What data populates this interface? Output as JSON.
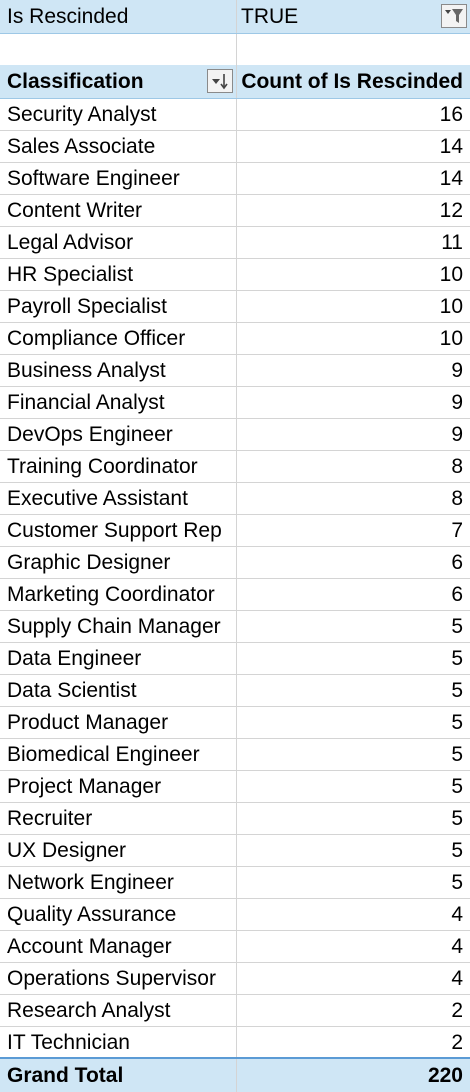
{
  "filter": {
    "field": "Is Rescinded",
    "value": "TRUE",
    "button_icon": "filter-dropdown-icon"
  },
  "header": {
    "col1": "Classification",
    "col2": "Count of Is Rescinded",
    "sort_icon": "sort-descending-dropdown-icon"
  },
  "rows": [
    {
      "label": "Security Analyst",
      "count": "16"
    },
    {
      "label": "Sales Associate",
      "count": "14"
    },
    {
      "label": "Software Engineer",
      "count": "14"
    },
    {
      "label": "Content Writer",
      "count": "12"
    },
    {
      "label": "Legal Advisor",
      "count": "11"
    },
    {
      "label": "HR Specialist",
      "count": "10"
    },
    {
      "label": "Payroll Specialist",
      "count": "10"
    },
    {
      "label": "Compliance Officer",
      "count": "10"
    },
    {
      "label": "Business Analyst",
      "count": "9"
    },
    {
      "label": "Financial Analyst",
      "count": "9"
    },
    {
      "label": "DevOps Engineer",
      "count": "9"
    },
    {
      "label": "Training Coordinator",
      "count": "8"
    },
    {
      "label": "Executive Assistant",
      "count": "8"
    },
    {
      "label": "Customer Support Rep",
      "count": "7"
    },
    {
      "label": "Graphic Designer",
      "count": "6"
    },
    {
      "label": "Marketing Coordinator",
      "count": "6"
    },
    {
      "label": "Supply Chain Manager",
      "count": "5"
    },
    {
      "label": "Data Engineer",
      "count": "5"
    },
    {
      "label": "Data Scientist",
      "count": "5"
    },
    {
      "label": "Product Manager",
      "count": "5"
    },
    {
      "label": "Biomedical Engineer",
      "count": "5"
    },
    {
      "label": "Project Manager",
      "count": "5"
    },
    {
      "label": "Recruiter",
      "count": "5"
    },
    {
      "label": "UX Designer",
      "count": "5"
    },
    {
      "label": "Network Engineer",
      "count": "5"
    },
    {
      "label": "Quality Assurance",
      "count": "4"
    },
    {
      "label": "Account Manager",
      "count": "4"
    },
    {
      "label": "Operations Supervisor",
      "count": "4"
    },
    {
      "label": "Research Analyst",
      "count": "2"
    },
    {
      "label": "IT Technician",
      "count": "2"
    }
  ],
  "total": {
    "label": "Grand Total",
    "count": "220"
  },
  "colors": {
    "header_fill": "#cfe6f5",
    "border_accent": "#5b9bd5",
    "gridline": "#d4d4d4"
  }
}
